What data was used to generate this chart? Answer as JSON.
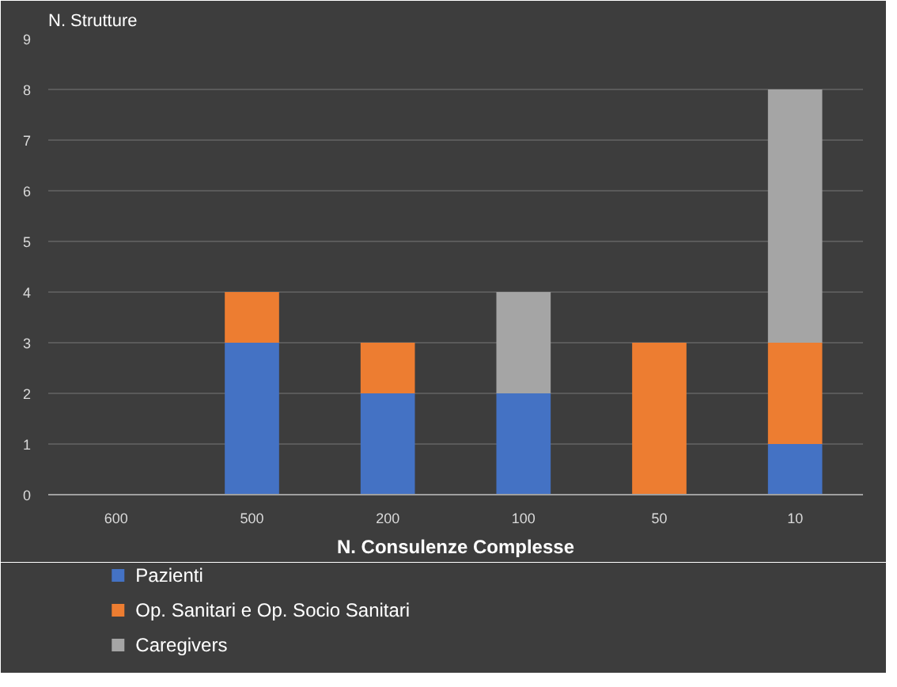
{
  "chart_data": {
    "type": "bar",
    "stacked": true,
    "ylabel": "N. Strutture",
    "xlabel": "N. Consulenze Complesse",
    "categories": [
      "600",
      "500",
      "200",
      "100",
      "50",
      "10"
    ],
    "series": [
      {
        "name": "Pazienti",
        "color": "#4472c4",
        "values": [
          0,
          3,
          2,
          2,
          0,
          1
        ]
      },
      {
        "name": "Op. Sanitari  e Op. Socio Sanitari",
        "color": "#ed7d31",
        "values": [
          0,
          1,
          1,
          0,
          3,
          2
        ]
      },
      {
        "name": "Caregivers",
        "color": "#a5a5a5",
        "values": [
          0,
          0,
          0,
          2,
          0,
          5
        ]
      }
    ],
    "ylim": [
      0,
      9
    ],
    "yticks": [
      0,
      1,
      2,
      3,
      4,
      5,
      6,
      7,
      8,
      9
    ],
    "grid": "y",
    "legend": "bottom"
  }
}
